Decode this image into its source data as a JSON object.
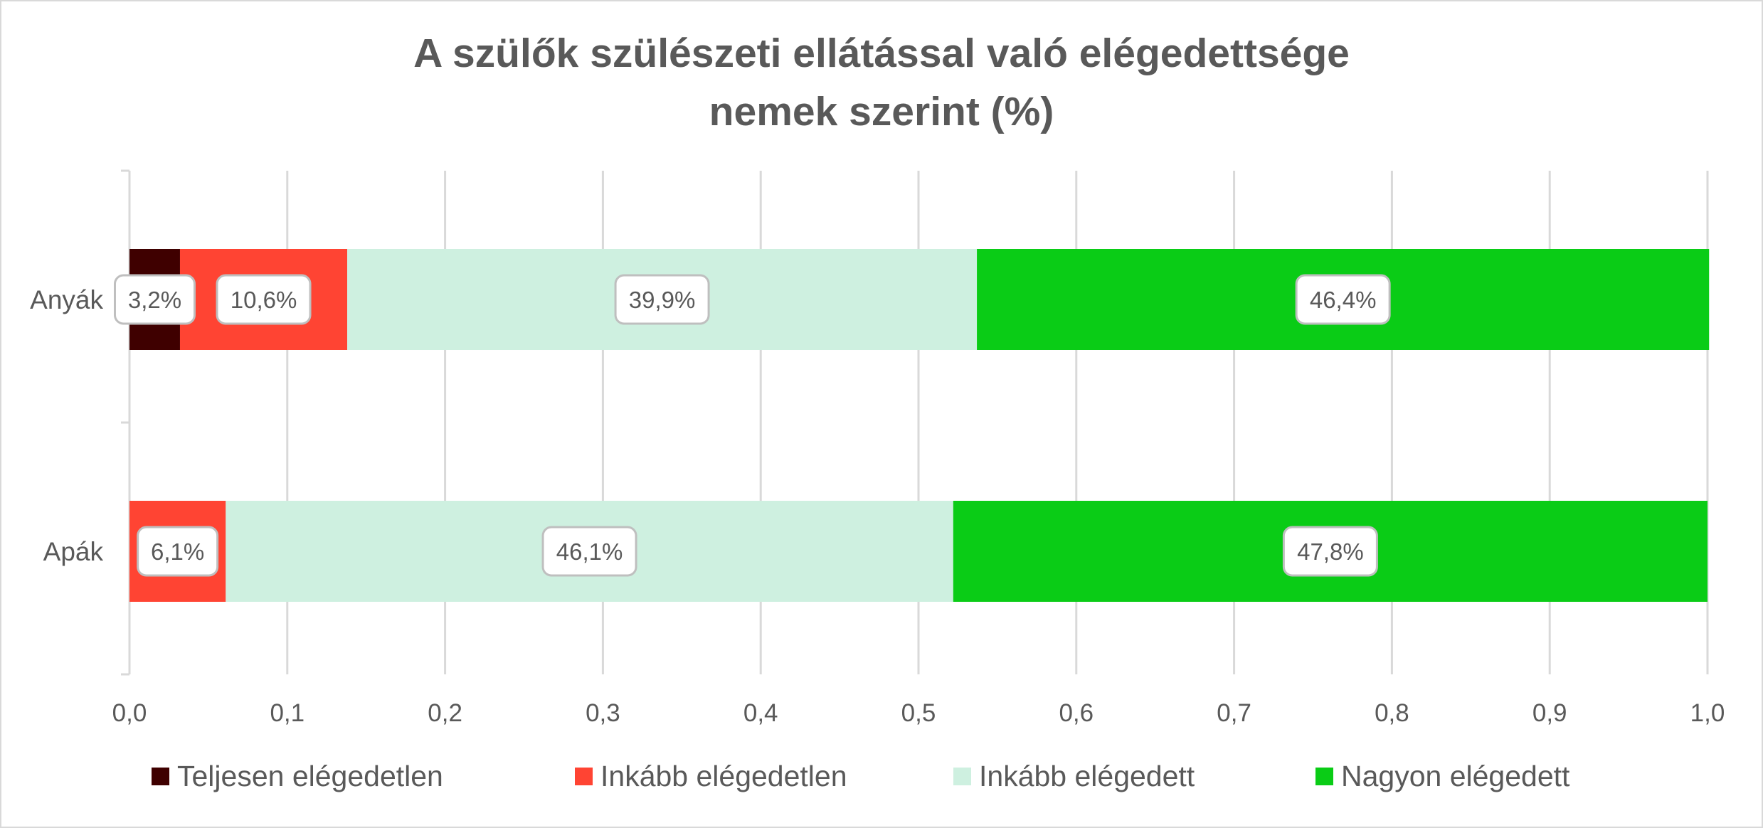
{
  "chart_data": {
    "type": "bar",
    "orientation": "horizontal",
    "stacked": true,
    "title": [
      "A szülők szülészeti ellátással való elégedettsége",
      "nemek szerint (%)"
    ],
    "categories": [
      "Anyák",
      "Apák"
    ],
    "xlim": [
      0,
      1
    ],
    "xticks": [
      "0,0",
      "0,1",
      "0,2",
      "0,3",
      "0,4",
      "0,5",
      "0,6",
      "0,7",
      "0,8",
      "0,9",
      "1,0"
    ],
    "grid": true,
    "legend_position": "bottom",
    "series": [
      {
        "name": "Teljesen elégedetlen",
        "color": "#3F0000",
        "values": [
          0.032,
          0.0
        ],
        "labels": [
          "3,2%",
          ""
        ]
      },
      {
        "name": "Inkább elégedetlen",
        "color": "#FF4433",
        "values": [
          0.106,
          0.061
        ],
        "labels": [
          "10,6%",
          "6,1%"
        ]
      },
      {
        "name": "Inkább elégedett",
        "color": "#CEF0E0",
        "values": [
          0.399,
          0.461
        ],
        "labels": [
          "39,9%",
          "46,1%"
        ]
      },
      {
        "name": "Nagyon elégedett",
        "color": "#0ACC16",
        "values": [
          0.464,
          0.478
        ],
        "labels": [
          "46,4%",
          "47,8%"
        ]
      }
    ]
  }
}
